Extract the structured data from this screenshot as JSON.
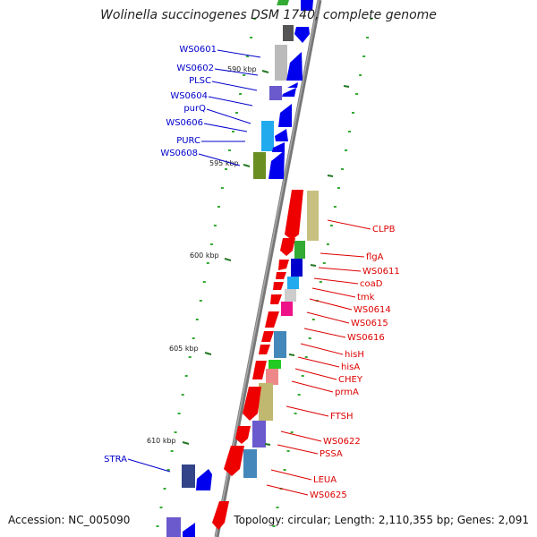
{
  "title": "Wolinella succinogenes DSM 1740, complete genome",
  "footer": {
    "accession": "Accession: NC_005090",
    "topology": "Topology: circular; Length: 2,110,355 bp; Genes: 2,091"
  },
  "colors": {
    "forward_label": "#0000cc",
    "reverse_label": "#dd0000",
    "backbone": "#8a8a8a",
    "tick": "#228822",
    "forward_gene": "#0000ee",
    "reverse_gene": "#ee0000"
  },
  "scale_labels": [
    {
      "text": "590 kbp",
      "kbp": 590
    },
    {
      "text": "595 kbp",
      "kbp": 595
    },
    {
      "text": "600 kbp",
      "kbp": 600
    },
    {
      "text": "605 kbp",
      "kbp": 605
    },
    {
      "text": "610 kbp",
      "kbp": 610
    }
  ],
  "forward_labels": [
    "WS0601",
    "WS0602",
    "PLSC",
    "WS0604",
    "purQ",
    "WS0606",
    "PURC",
    "WS0608",
    "STRA"
  ],
  "reverse_labels": [
    "CLPB",
    "flgA",
    "WS0611",
    "coaD",
    "tmk",
    "WS0614",
    "WS0615",
    "WS0616",
    "hisH",
    "hisA",
    "CHEY",
    "prmA",
    "FTSH",
    "WS0622",
    "PSSA",
    "LEUA",
    "WS0625"
  ]
}
